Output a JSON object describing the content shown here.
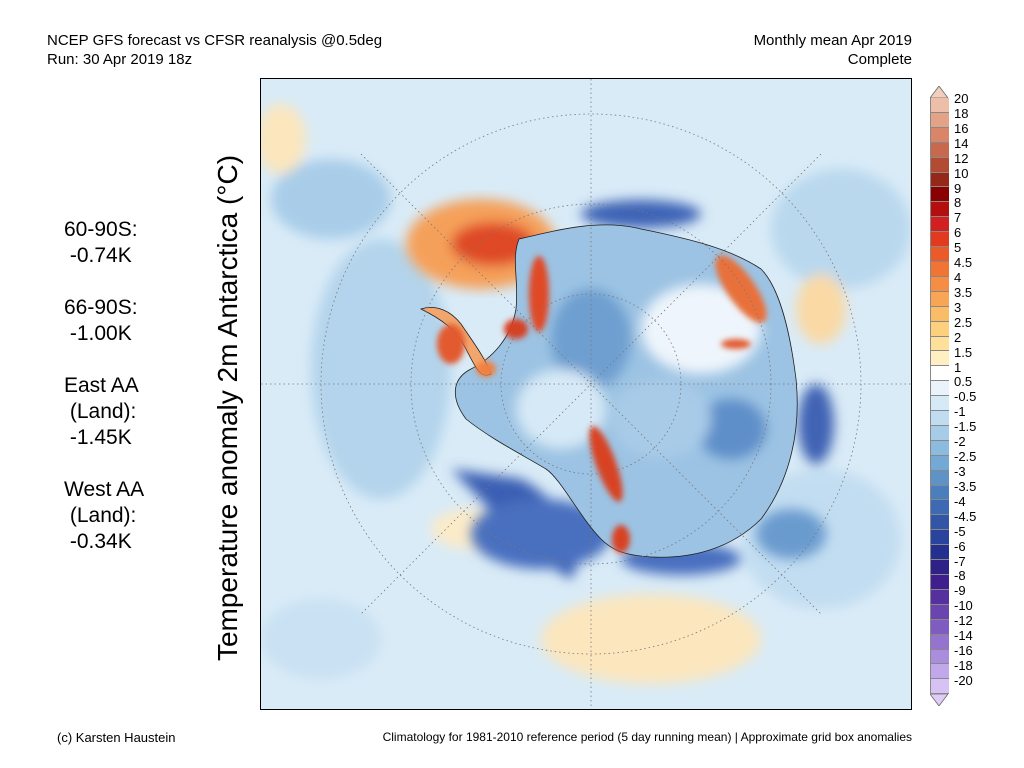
{
  "header": {
    "title_line1": "NCEP GFS forecast vs CFSR reanalysis @0.5deg",
    "title_line2": "Run: 30 Apr 2019 18z",
    "period_line1": "Monthly mean Apr 2019",
    "period_line2": "Complete"
  },
  "axis_label": "Temperature anomaly 2m Antarctica (°C)",
  "stats": [
    {
      "label": "60-90S:",
      "value": "-0.74K"
    },
    {
      "label": "66-90S:",
      "value": "-1.00K"
    },
    {
      "label": "East AA",
      "sub": "(Land):",
      "value": "-1.45K"
    },
    {
      "label": "West AA",
      "sub": "(Land):",
      "value": "-0.34K"
    }
  ],
  "colorbar": {
    "labels": [
      "20",
      "18",
      "16",
      "14",
      "12",
      "10",
      "9",
      "8",
      "7",
      "6",
      "5",
      "4.5",
      "4",
      "3.5",
      "3",
      "2.5",
      "2",
      "1.5",
      "1",
      "0.5",
      "-0.5",
      "-1",
      "-1.5",
      "-2",
      "-2.5",
      "-3",
      "-3.5",
      "-4",
      "-4.5",
      "-5",
      "-6",
      "-7",
      "-8",
      "-9",
      "-10",
      "-12",
      "-14",
      "-16",
      "-18",
      "-20"
    ],
    "colors": [
      "#eebfa8",
      "#e4a286",
      "#d88568",
      "#c8684c",
      "#b34a32",
      "#96281a",
      "#8b0000",
      "#b40f0f",
      "#d22020",
      "#e23a1e",
      "#ec5a2a",
      "#f07434",
      "#f58e44",
      "#f8a556",
      "#fbbc68",
      "#fdd07e",
      "#fee09a",
      "#fff0c4",
      "#ffffff",
      "#eaf3fb",
      "#d6e9f6",
      "#bfdcf0",
      "#a6cce8",
      "#8cbbe0",
      "#74a8d5",
      "#5e93c8",
      "#4b7ebd",
      "#3e69b3",
      "#3255a8",
      "#2a439d",
      "#24308f",
      "#2e2286",
      "#3f1f8e",
      "#55309e",
      "#6a45af",
      "#7f5cbf",
      "#9574cf",
      "#ab8ddd",
      "#c1a8ea",
      "#d6c2f4"
    ]
  },
  "footer": {
    "credit": "(c) Karsten Haustein",
    "note": "Climatology for 1981-2010 reference period (5 day running mean) | Approximate grid box anomalies"
  }
}
